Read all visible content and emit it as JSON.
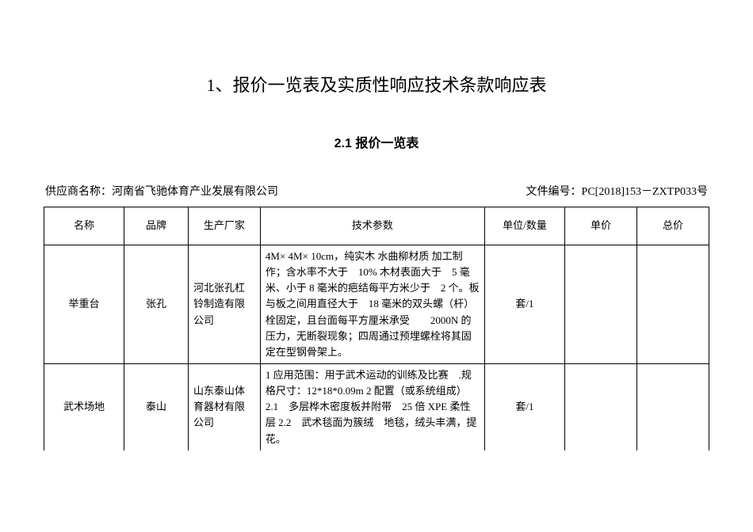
{
  "title": "1、报价一览表及实质性响应技术条款响应表",
  "subtitle": "2.1 报价一览表",
  "supplier_label": "供应商名称：",
  "supplier_name": "河南省飞驰体育产业发展有限公司",
  "doc_no_label": "文件编号：",
  "doc_no": "PC[2018]153－ZXTP033号",
  "columns": {
    "name": "名称",
    "brand": "品牌",
    "maker": "生产厂家",
    "spec": "技术参数",
    "unit": "单位/数量",
    "price": "单价",
    "total": "总价"
  },
  "rows": [
    {
      "name": "举重台",
      "brand": "张孔",
      "maker": "河北张孔杠铃制造有限公司",
      "spec": "4M× 4M× 10cm，纯实木 水曲柳材质 加工制作；含水率不大于　10%  木材表面大于　5 毫米、小于  8 毫米的疤结每平方米少于　2 个。板与板之间用直径大于　18 毫米的双头螺（杆）栓固定，且台面每平方厘米承受　　2000N 的压力，无断裂现象；四周通过预埋螺栓将其固定在型钢骨架上。",
      "unit": "套/1",
      "price": "",
      "total": ""
    },
    {
      "name": "武术场地",
      "brand": "泰山",
      "maker": "山东泰山体育器材有限公司",
      "spec": "1 应用范围：用于武术运动的训练及比赛　.规格尺寸：12*18*0.09m\n2 配置（或系统组成）\n2.1　多层桦木密度板并附带　25 倍 XPE 柔性层\n2.2　武术毯面为簇绒　地毯，绒头丰满，提花。",
      "unit": "套/1",
      "price": "",
      "total": ""
    }
  ]
}
